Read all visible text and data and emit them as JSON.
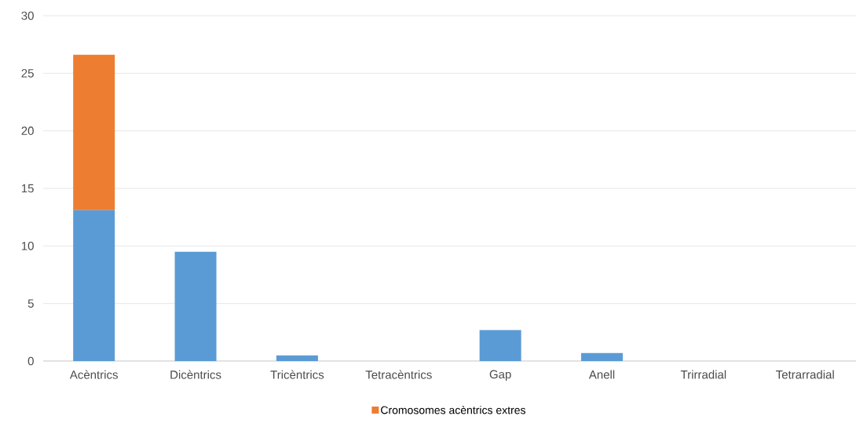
{
  "chart_data": {
    "type": "bar",
    "stacked": true,
    "categories": [
      "Acèntrics",
      "Dicèntrics",
      "Tricèntrics",
      "Tetracèntrics",
      "Gap",
      "Anell",
      "Trirradial",
      "Tetrarradial"
    ],
    "series": [
      {
        "color": "#5b9bd5",
        "values": [
          13.1,
          9.5,
          0.5,
          0,
          2.7,
          0.7,
          0,
          0
        ]
      },
      {
        "name": "Cromosomes acèntrics extres",
        "color": "#ed7d31",
        "values": [
          13.5,
          0,
          0,
          0,
          0,
          0,
          0,
          0
        ]
      }
    ],
    "ylim": [
      0,
      30
    ],
    "yticks": [
      0,
      5,
      10,
      15,
      20,
      25,
      30
    ],
    "grid": "y",
    "legend": "bottom"
  }
}
